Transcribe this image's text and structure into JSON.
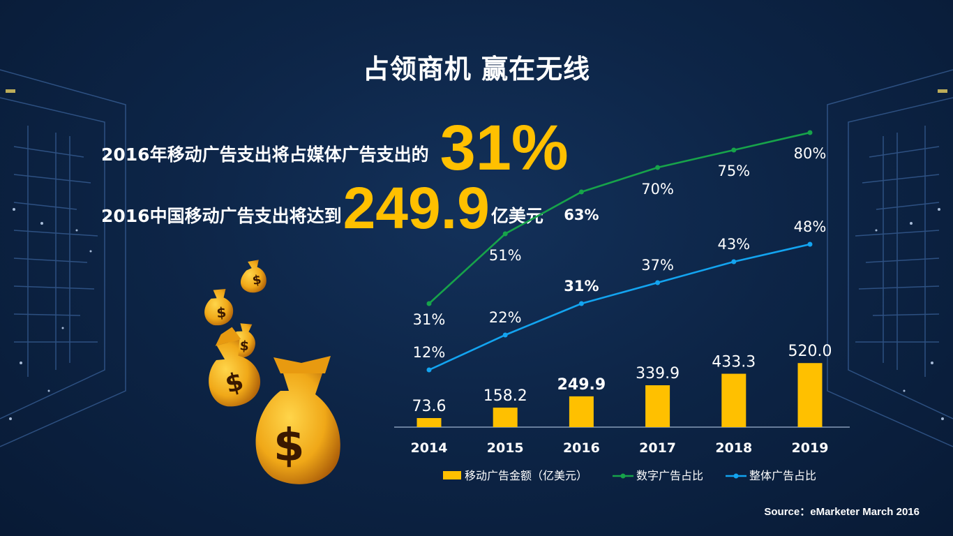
{
  "title": "占领商机 赢在无线",
  "headline1": {
    "text": "2016年移动广告支出将占媒体广告支出的",
    "value": "31%"
  },
  "headline2": {
    "text": "2016中国移动广告支出将达到",
    "value": "249.9",
    "unit": "亿美元"
  },
  "source": "Source：eMarketer March 2016",
  "colors": {
    "accent": "#ffc000",
    "green": "#17a34a",
    "blue": "#13a4f0",
    "background": "#0d2547"
  },
  "chart_data": {
    "type": "bar",
    "categories": [
      "2014",
      "2015",
      "2016",
      "2017",
      "2018",
      "2019"
    ],
    "highlight_category": "2016",
    "series": [
      {
        "name": "移动广告金额（亿美元）",
        "type": "bar",
        "values": [
          73.6,
          158.2,
          249.9,
          339.9,
          433.3,
          520.0
        ],
        "labels": [
          "73.6",
          "158.2",
          "249.9",
          "339.9",
          "433.3",
          "520.0"
        ]
      },
      {
        "name": "数字广告占比",
        "type": "line",
        "values": [
          31,
          51,
          63,
          70,
          75,
          80
        ],
        "labels": [
          "31%",
          "51%",
          "63%",
          "70%",
          "75%",
          "80%"
        ]
      },
      {
        "name": "整体广告占比",
        "type": "line",
        "values": [
          12,
          22,
          31,
          37,
          43,
          48
        ],
        "labels": [
          "12%",
          "22%",
          "31%",
          "37%",
          "43%",
          "48%"
        ]
      }
    ],
    "legend_position": "bottom",
    "grid": false
  }
}
